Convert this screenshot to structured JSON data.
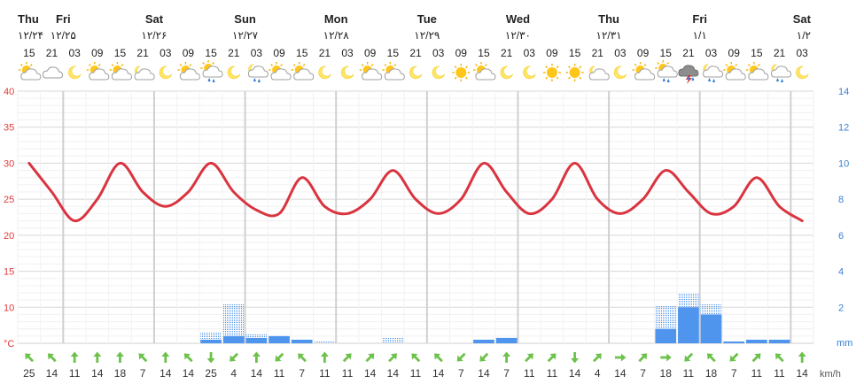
{
  "chart_data": {
    "type": "line",
    "days": [
      {
        "name": "Thu",
        "date": "۱۲/۲۴",
        "slot": 0
      },
      {
        "name": "Fri",
        "date": "۱۲/۲۵",
        "slot": 2
      },
      {
        "name": "Sat",
        "date": "۱۲/۲۶",
        "slot": 6
      },
      {
        "name": "Sun",
        "date": "۱۲/۲۷",
        "slot": 10
      },
      {
        "name": "Mon",
        "date": "۱۲/۲۸",
        "slot": 14
      },
      {
        "name": "Tue",
        "date": "۱۲/۲۹",
        "slot": 18
      },
      {
        "name": "Wed",
        "date": "۱۲/۳۰",
        "slot": 22
      },
      {
        "name": "Thu",
        "date": "۱۲/۳۱",
        "slot": 26
      },
      {
        "name": "Fri",
        "date": "۱/۱",
        "slot": 30
      },
      {
        "name": "Sat",
        "date": "۱/۲",
        "slot": 34
      }
    ],
    "hours": [
      "15",
      "21",
      "03",
      "09",
      "15",
      "21",
      "03",
      "09",
      "15",
      "21",
      "03",
      "09",
      "15",
      "21",
      "03",
      "09",
      "15",
      "21",
      "03",
      "09",
      "15",
      "21",
      "03",
      "09",
      "15",
      "21",
      "03",
      "09",
      "15",
      "21",
      "03",
      "09",
      "15",
      "21",
      "03"
    ],
    "icons": [
      "partly-cloudy-sun",
      "cloudy",
      "crescent-moon",
      "partly-cloudy-sun",
      "partly-cloudy-sun",
      "cloudy-moon",
      "crescent-moon",
      "partly-cloudy-sun",
      "light-rain-sun",
      "crescent-moon",
      "light-rain-moon",
      "partly-cloudy-sun",
      "partly-cloudy-sun",
      "crescent-moon",
      "crescent-moon",
      "partly-cloudy-sun",
      "partly-cloudy-sun",
      "crescent-moon",
      "crescent-moon",
      "sun",
      "partly-cloudy-sun",
      "crescent-moon",
      "crescent-moon",
      "sun",
      "sun",
      "cloudy-moon",
      "crescent-moon",
      "partly-cloudy-sun",
      "light-rain-sun",
      "thunderstorm",
      "light-rain-moon",
      "partly-cloudy-sun",
      "partly-cloudy-sun",
      "light-rain-moon",
      "crescent-moon"
    ],
    "temperature": [
      30,
      26,
      22,
      25,
      30,
      26,
      24,
      26,
      30,
      26,
      23.5,
      23,
      28,
      24,
      23,
      25,
      29,
      25,
      23,
      25,
      30,
      26,
      23,
      25,
      30,
      25,
      23,
      25,
      29,
      26,
      23,
      24,
      28,
      24,
      22
    ],
    "precip_max": [
      0,
      0,
      0,
      0,
      0,
      0,
      0,
      0,
      0.6,
      2.2,
      0.5,
      0,
      0,
      0.1,
      0,
      0,
      0.3,
      0,
      0,
      0,
      0,
      0,
      0,
      0,
      0,
      0,
      0,
      0,
      2.1,
      2.8,
      2.2,
      0,
      0,
      0,
      0
    ],
    "precip": [
      0,
      0,
      0,
      0,
      0,
      0,
      0,
      0,
      0.2,
      0.4,
      0.3,
      0.4,
      0.2,
      0,
      0,
      0,
      0,
      0,
      0,
      0,
      0.2,
      0.3,
      0,
      0,
      0,
      0,
      0,
      0,
      0.8,
      2.0,
      1.6,
      0.1,
      0.2,
      0.2,
      0
    ],
    "wind_speed": [
      25,
      14,
      11,
      14,
      18,
      7,
      14,
      14,
      25,
      4,
      14,
      11,
      7,
      11,
      11,
      14,
      14,
      11,
      14,
      7,
      14,
      7,
      11,
      11,
      14,
      4,
      14,
      7,
      18,
      11,
      18,
      7,
      11,
      11,
      14
    ],
    "wind_dir_deg": [
      135,
      135,
      180,
      180,
      180,
      135,
      180,
      135,
      0,
      45,
      180,
      45,
      135,
      180,
      225,
      225,
      225,
      135,
      135,
      45,
      45,
      180,
      225,
      225,
      0,
      225,
      270,
      225,
      270,
      45,
      135,
      45,
      225,
      135,
      180
    ],
    "left_axis": {
      "ticks": [
        40,
        35,
        30,
        25,
        20,
        15,
        10,
        "°C"
      ],
      "range": [
        5,
        40
      ]
    },
    "right_axis": {
      "ticks": [
        14,
        12,
        10,
        8,
        6,
        4,
        2
      ],
      "unit": "mm",
      "range": [
        0,
        14
      ]
    },
    "wind_unit": "km/h",
    "colors": {
      "temperature": "#d9343f",
      "precip": "#4f95ee",
      "day_line": "#d0d0d0",
      "grid": "#ececec",
      "wind_arrow": "#6cc24a",
      "left_axis": "#e03a3a",
      "right_axis": "#3a7fd5"
    }
  }
}
